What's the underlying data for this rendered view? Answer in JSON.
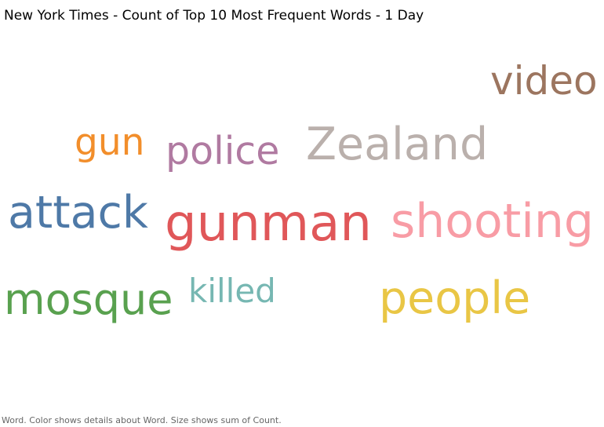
{
  "title": "New York Times - Count of Top 10 Most Frequent Words - 1 Day",
  "footer": "Word.  Color shows details about Word.  Size shows sum of Count.",
  "chart_data": {
    "type": "wordcloud",
    "title": "New York Times - Count of Top 10 Most Frequent Words - 1 Day",
    "encoding": {
      "color": "Word",
      "size": "sum of Count"
    },
    "words": [
      {
        "word": "gunman",
        "relative_size": 1.0,
        "color": "#e05759"
      },
      {
        "word": "shooting",
        "relative_size": 0.93,
        "color": "#f89ca5"
      },
      {
        "word": "attack",
        "relative_size": 0.89,
        "color": "#4e79a7"
      },
      {
        "word": "Zealand",
        "relative_size": 0.89,
        "color": "#bab0ac"
      },
      {
        "word": "people",
        "relative_size": 0.89,
        "color": "#e9c645"
      },
      {
        "word": "mosque",
        "relative_size": 0.84,
        "color": "#59a14f"
      },
      {
        "word": "video",
        "relative_size": 0.78,
        "color": "#9c755f"
      },
      {
        "word": "police",
        "relative_size": 0.76,
        "color": "#b07aa1"
      },
      {
        "word": "gun",
        "relative_size": 0.74,
        "color": "#f28e2b"
      },
      {
        "word": "killed",
        "relative_size": 0.66,
        "color": "#76b7b2"
      }
    ]
  }
}
